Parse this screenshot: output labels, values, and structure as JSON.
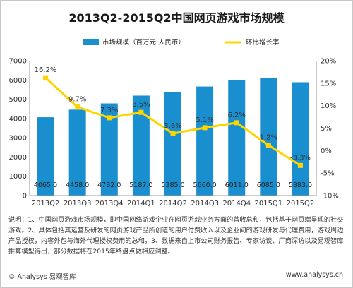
{
  "chart_data": {
    "type": "bar+line",
    "title": "2013Q2-2015Q2中国网页游戏市场规模",
    "categories": [
      "2013Q2",
      "2013Q3",
      "2013Q4",
      "2014Q1",
      "2014Q2",
      "2014Q3",
      "2014Q4",
      "2015Q1",
      "2015Q2"
    ],
    "series": [
      {
        "name": "市场规模（百万元 人民币）",
        "type": "bar",
        "axis": "left",
        "values": [
          4065.0,
          4458.0,
          4782.0,
          5187.0,
          5385.0,
          5660.0,
          6011.0,
          6085.0,
          5883.0
        ],
        "labels": [
          "4065.0",
          "4458.0",
          "4782.0",
          "5187.0",
          "5385.0",
          "5660.0",
          "6011.0",
          "6085.0",
          "5883.0"
        ]
      },
      {
        "name": "环比增长率",
        "type": "line",
        "axis": "right",
        "values": [
          16.2,
          9.7,
          7.3,
          8.5,
          3.8,
          5.1,
          6.2,
          1.2,
          -3.3
        ],
        "labels": [
          "16.2%",
          "9.7%",
          "7.3%",
          "8.5%",
          "3.8%",
          "5.1%",
          "6.2%",
          "1.2%",
          "-3.3%"
        ]
      }
    ],
    "left_axis": {
      "range": [
        0,
        7000
      ],
      "ticks": [
        "0",
        "1000",
        "2000",
        "3000",
        "4000",
        "5000",
        "6000",
        "7000"
      ]
    },
    "right_axis": {
      "range": [
        -10,
        20
      ],
      "ticks": [
        "-10%",
        "-5%",
        "0%",
        "5%",
        "10%",
        "15%",
        "20%"
      ]
    },
    "grid": false,
    "legend_position": "top",
    "colors": {
      "bar": "#1a8fd0",
      "line": "#ffd400",
      "marker": "#ffd400"
    }
  },
  "note": "说明：1、中国网页游戏市场规模，即中国网络游戏企业在网页游戏业务方面的营收总和，包括基于网页端呈现的社交游戏。2、具体包括其运营及研发的网页游戏产品所创造的用户付费收入以及企业间的游戏研发与代理费用，游戏周边产品授权，内容外包与海外代理授权费用的总和。3、数据来自上市公司财务报告、专家访谈、厂商深访以及易观智库推算模型得出，部分数据将在2015年终盘点做相应调整。",
  "footer": {
    "brand": "© Analysys 易观智库",
    "url": "www.analysys.cn"
  }
}
